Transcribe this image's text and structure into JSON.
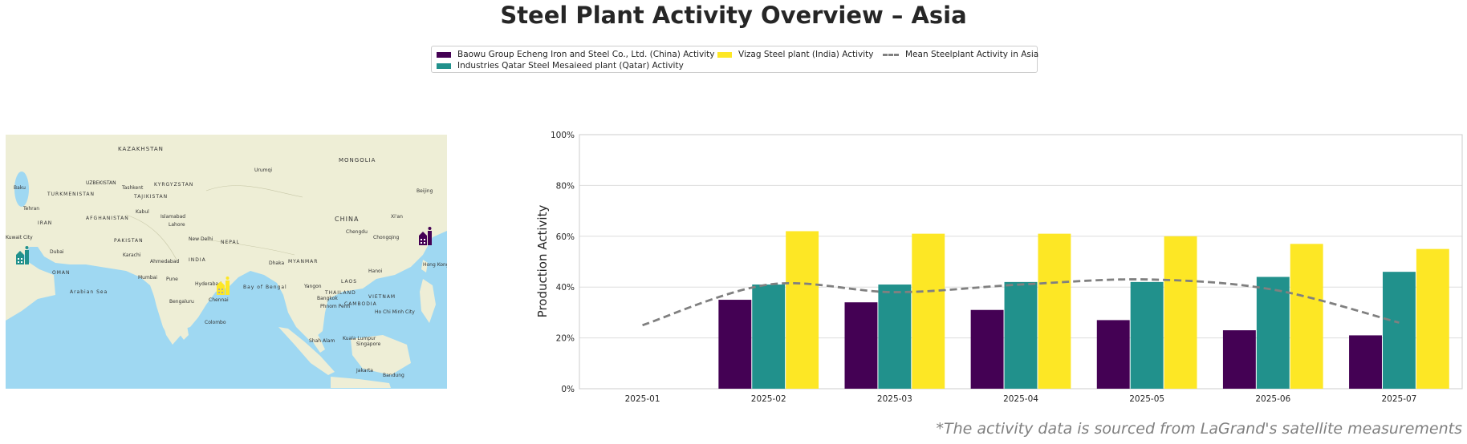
{
  "title": "Steel Plant Activity Overview – Asia",
  "footer": "*The activity data is sourced from LaGrand's satellite measurements",
  "legend": {
    "baowu": "Baowu Group Echeng Iron and Steel Co., Ltd. (China) Activity",
    "qatar": "Industries Qatar Steel Mesaieed plant (Qatar) Activity",
    "vizag": "Vizag Steel plant (India) Activity",
    "mean": "Mean Steelplant Activity in Asia"
  },
  "map": {
    "labels": [
      "KAZAKHSTAN",
      "MONGOLIA",
      "Urumqi",
      "UZBEKISTAN",
      "KYRGYZSTAN",
      "Baku",
      "TURKMENISTAN",
      "Tashkent",
      "TAJIKISTAN",
      "Beijing",
      "IRAN",
      "Tehran",
      "AFGHANISTAN",
      "Kabul",
      "Islamabad",
      "Lahore",
      "CHINA",
      "Xi'an",
      "Chengdu",
      "Chongqing",
      "Kuwait City",
      "PAKISTAN",
      "New Delhi",
      "Karachi",
      "NEPAL",
      "Dubai",
      "Ahmedabad",
      "INDIA",
      "Dhaka",
      "MYANMAR",
      "Hanoi",
      "Hong Kong",
      "OMAN",
      "Mumbai",
      "Pune",
      "Hyderabad",
      "Bay of Bengal",
      "Yangon",
      "LAOS",
      "THAILAND",
      "Arabian Sea",
      "Bengaluru",
      "Chennai",
      "Bangkok",
      "VIETNAM",
      "CAMBODIA",
      "Phnom Penh",
      "Ho Chi Minh City",
      "Colombo",
      "Kuala Lumpur",
      "Shah Alam",
      "Singapore",
      "Jakarta",
      "Bandung"
    ],
    "markers": [
      {
        "plant": "Baowu Group Echeng Iron and Steel Co., Ltd. (China)",
        "color": "#440154"
      },
      {
        "plant": "Industries Qatar Steel Mesaieed plant (Qatar)",
        "color": "#21918c"
      },
      {
        "plant": "Vizag Steel plant (India)",
        "color": "#fde725"
      }
    ]
  },
  "chart_data": {
    "type": "bar",
    "categories": [
      "2025-01",
      "2025-02",
      "2025-03",
      "2025-04",
      "2025-05",
      "2025-06",
      "2025-07"
    ],
    "ylabel": "Production Activity",
    "ylim": [
      0,
      100
    ],
    "yticks": [
      "0%",
      "20%",
      "40%",
      "60%",
      "80%",
      "100%"
    ],
    "grid": true,
    "series": [
      {
        "name": "Baowu Group Echeng Iron and Steel Co., Ltd. (China) Activity",
        "color": "#440154",
        "values": [
          null,
          35,
          34,
          31,
          27,
          23,
          21
        ]
      },
      {
        "name": "Industries Qatar Steel Mesaieed plant (Qatar) Activity",
        "color": "#21918c",
        "values": [
          null,
          41,
          41,
          42,
          42,
          44,
          46
        ]
      },
      {
        "name": "Vizag Steel plant (India) Activity",
        "color": "#fde725",
        "values": [
          null,
          62,
          61,
          61,
          60,
          57,
          55
        ]
      }
    ],
    "mean_line": {
      "name": "Mean Steelplant Activity in Asia",
      "color": "#808080",
      "values": [
        25,
        41,
        38,
        41,
        43,
        39,
        26
      ]
    }
  }
}
